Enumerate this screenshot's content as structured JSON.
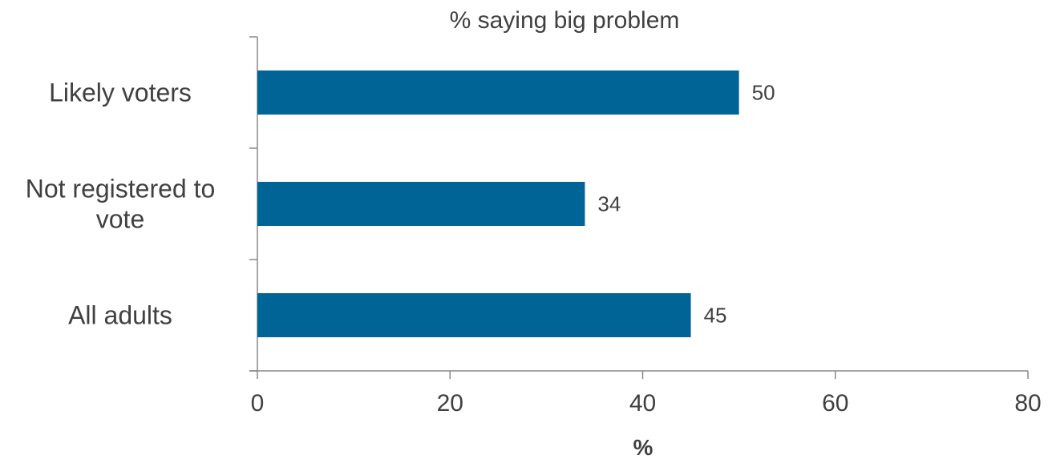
{
  "chart_data": {
    "type": "bar",
    "orientation": "horizontal",
    "title": "% saying big problem",
    "categories": [
      "Likely voters",
      "Not registered to vote",
      "All adults"
    ],
    "category_lines": [
      [
        "Likely voters"
      ],
      [
        "Not registered to",
        "vote"
      ],
      [
        "All adults"
      ]
    ],
    "values": [
      50,
      34,
      45
    ],
    "value_labels": [
      "50",
      "34",
      "45"
    ],
    "xlabel": "%",
    "ylabel": "",
    "xlim": [
      0,
      80
    ],
    "x_ticks": [
      "0",
      "20",
      "40",
      "60",
      "80"
    ],
    "grid": false,
    "legend": "none",
    "colors": {
      "bar": "#006496",
      "text": "#404040",
      "axis": "#888888"
    }
  }
}
